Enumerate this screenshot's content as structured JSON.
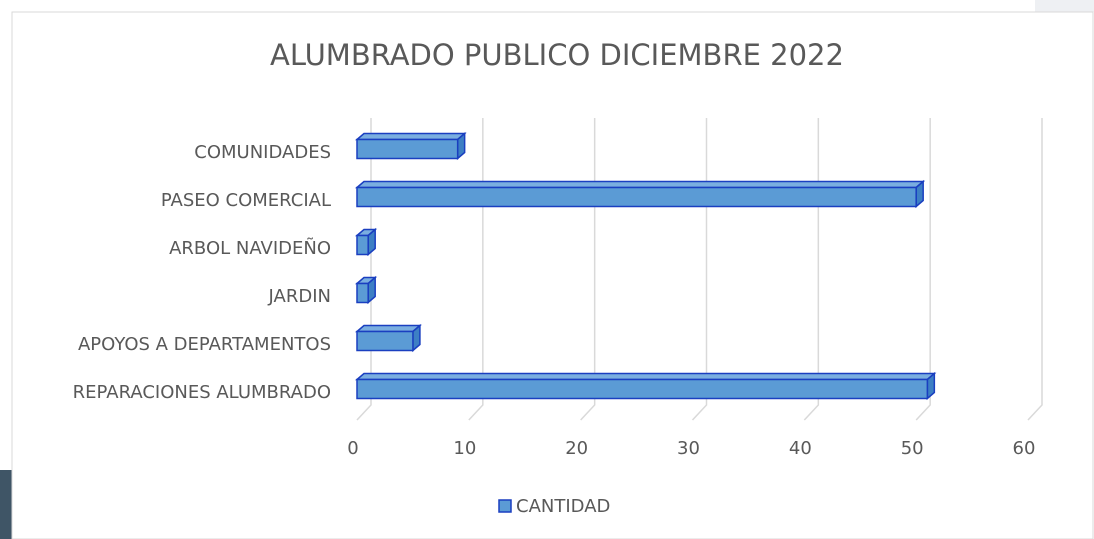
{
  "chart_data": {
    "type": "bar3d_horizontal",
    "title": "ALUMBRADO PUBLICO DICIEMBRE 2022",
    "categories": [
      "COMUNIDADES",
      "PASEO COMERCIAL",
      "ARBOL NAVIDEÑO",
      "JARDIN",
      "APOYOS A DEPARTAMENTOS",
      "REPARACIONES ALUMBRADO"
    ],
    "series": [
      {
        "name": "CANTIDAD",
        "color": "#5b9bd5",
        "values": [
          9,
          50,
          1,
          1,
          5,
          51
        ]
      }
    ],
    "xlim": [
      0,
      60
    ],
    "xticks": [
      0,
      10,
      20,
      30,
      40,
      50,
      60
    ],
    "grid": true,
    "legend": "bottom"
  }
}
